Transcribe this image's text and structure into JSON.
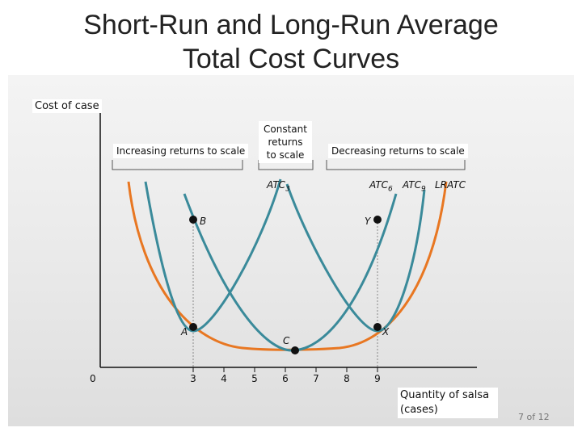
{
  "title_line1": "Short-Run and Long-Run Average",
  "title_line2": "Total Cost Curves",
  "y_axis_label": "Cost of case",
  "x_axis_label_line1": "Quantity of salsa",
  "x_axis_label_line2": "(cases)",
  "origin_label": "0",
  "x_ticks": [
    "3",
    "4",
    "5",
    "6",
    "7",
    "8",
    "9"
  ],
  "regions": {
    "increasing": "Increasing returns to scale",
    "constant_line1": "Constant",
    "constant_line2": "returns",
    "constant_line3": "to scale",
    "decreasing": "Decreasing returns to scale"
  },
  "curve_labels": {
    "atc3": "ATC",
    "atc3_sub": "3",
    "atc6": "ATC",
    "atc6_sub": "6",
    "atc9": "ATC",
    "atc9_sub": "9",
    "lratc": "LRATC"
  },
  "point_labels": {
    "A": "A",
    "B": "B",
    "C": "C",
    "X": "X",
    "Y": "Y"
  },
  "page_number": "7 of 12",
  "colors": {
    "lratc": "#e87722",
    "atc": "#3a8a9a",
    "axis": "#111111",
    "guide": "#888888"
  }
}
